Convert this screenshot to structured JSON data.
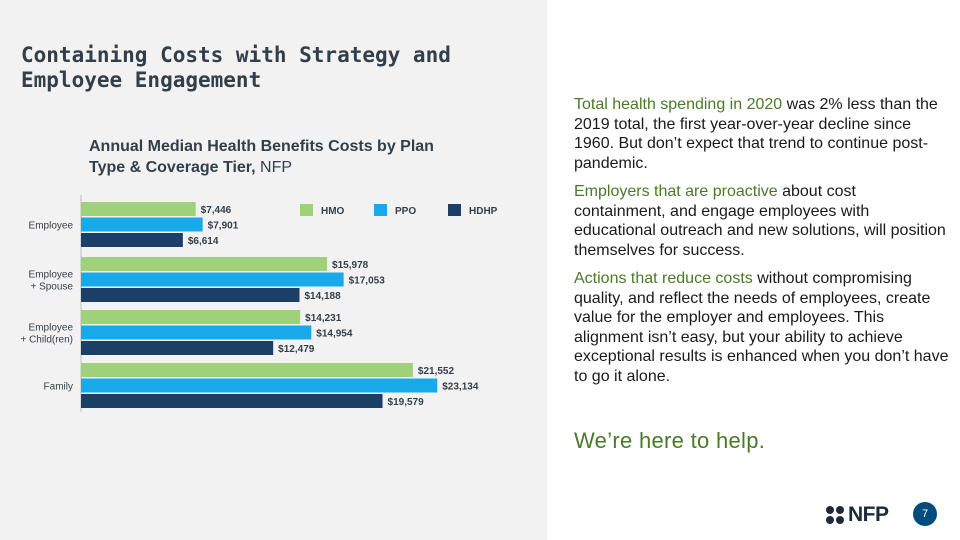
{
  "slide": {
    "title": "Containing Costs with Strategy and Employee Engagement",
    "chart_title": "Annual Median Health Benefits Costs by Plan Type & Coverage Tier,",
    "chart_title_suffix": "NFP",
    "page_number": "7"
  },
  "paragraphs": [
    {
      "highlight": "Total health spending in 2020",
      "text": " was 2% less than the 2019 total, the first year-over-year decline since 1960. But don’t expect that trend to continue post-pandemic."
    },
    {
      "highlight": "Employers that are proactive",
      "text": " about cost containment, and engage employees with educational outreach and new solutions, will position themselves for success."
    },
    {
      "highlight": "Actions that reduce costs",
      "text": " without compromising quality, and reflect the needs of employees, create value for the employer and employees. This alignment isn’t easy, but your ability to achieve exceptional results is enhanced when you don’t have to go it alone."
    }
  ],
  "tagline": "We’re here to help.",
  "logo": {
    "text": "NFP",
    "mark_icon": "nfp-logo-mark-icon"
  },
  "colors": {
    "hmo": "#9fd17a",
    "ppo": "#17a9e9",
    "hdhp": "#1b3f66",
    "accent_green": "#4a7a28",
    "badge": "#004c7f"
  },
  "chart_data": {
    "type": "bar",
    "orientation": "horizontal",
    "title": "Annual Median Health Benefits Costs by Plan Type & Coverage Tier, NFP",
    "categories": [
      "Employee",
      "Employee + Spouse",
      "Employee + Child(ren)",
      "Family"
    ],
    "category_lines": [
      [
        "Employee"
      ],
      [
        "Employee",
        "+ Spouse"
      ],
      [
        "Employee",
        "+ Child(ren)"
      ],
      [
        "Family"
      ]
    ],
    "series": [
      {
        "name": "HMO",
        "values": [
          7446,
          15978,
          14231,
          21552
        ],
        "labels": [
          "$7,446",
          "$15,978",
          "$14,231",
          "$21,552"
        ]
      },
      {
        "name": "PPO",
        "values": [
          7901,
          17053,
          14954,
          23134
        ],
        "labels": [
          "$7,901",
          "$17,053",
          "$14,954",
          "$23,134"
        ]
      },
      {
        "name": "HDHP",
        "values": [
          6614,
          14188,
          12479,
          19579
        ],
        "labels": [
          "$6,614",
          "$14,188",
          "$12,479",
          "$19,579"
        ]
      }
    ],
    "xlim": [
      0,
      25000
    ],
    "grid": false,
    "legend": "top-right"
  }
}
